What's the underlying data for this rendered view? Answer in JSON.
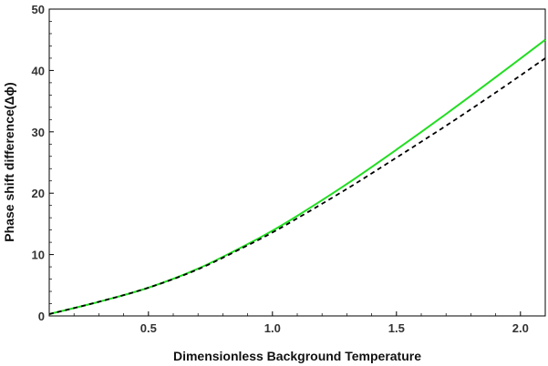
{
  "chart_data": {
    "type": "line",
    "title": "",
    "xlabel": "Dimensionless Background Temperature",
    "ylabel": "Phase shift difference(Δϕ)",
    "xlim": [
      0.1,
      2.1
    ],
    "ylim": [
      0,
      50
    ],
    "xticks": [
      0.5,
      1.0,
      1.5,
      2.0
    ],
    "xtick_labels": [
      "0.5",
      "1.0",
      "1.5",
      "2.0"
    ],
    "yticks": [
      0,
      10,
      20,
      30,
      40,
      50
    ],
    "ytick_labels": [
      "0",
      "10",
      "20",
      "30",
      "40",
      "50"
    ],
    "grid": false,
    "series": [
      {
        "style": "solid",
        "color": "#22dd22",
        "x": [
          0.1,
          0.3,
          0.5,
          0.7,
          0.9,
          1.0,
          1.1,
          1.3,
          1.5,
          1.7,
          1.9,
          2.1
        ],
        "y": [
          0.3,
          2.3,
          4.6,
          7.7,
          11.7,
          13.9,
          16.3,
          21.5,
          27.1,
          32.9,
          38.9,
          45.0
        ]
      },
      {
        "style": "dashed",
        "color": "#000000",
        "x": [
          0.1,
          0.3,
          0.5,
          0.7,
          0.9,
          1.0,
          1.1,
          1.3,
          1.5,
          1.7,
          1.9,
          2.1
        ],
        "y": [
          0.3,
          2.3,
          4.6,
          7.6,
          11.5,
          13.6,
          15.9,
          20.7,
          25.8,
          31.0,
          36.4,
          42.0
        ]
      }
    ]
  }
}
